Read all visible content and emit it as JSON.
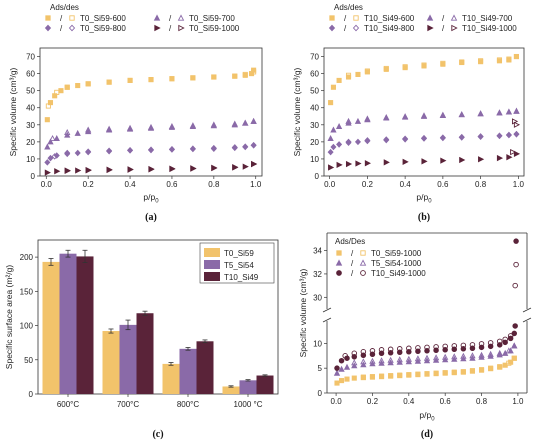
{
  "colors": {
    "yellow": "#f2c36b",
    "purple": "#8a6aa8",
    "dark": "#5a2339"
  },
  "chart_data": [
    {
      "panel": "a",
      "caption": "(a)",
      "type": "scatter",
      "legend_title": "Ads/des",
      "sep": "/",
      "xlabel": "p/p",
      "xlabel_sub": "0",
      "ylabel": "Specific volume (cm³/g)",
      "xlim": [
        -0.03,
        1.03
      ],
      "ylim": [
        0,
        75
      ],
      "xticks": [
        "0.0",
        "0.2",
        "0.4",
        "0.6",
        "0.8",
        "1.0"
      ],
      "yticks": [
        "0",
        "10",
        "20",
        "30",
        "40",
        "50",
        "60",
        "70"
      ],
      "series": [
        {
          "name": "T0_Si59-600",
          "marker": "square",
          "color": "yellow",
          "ads": {
            "x": [
              0.005,
              0.02,
              0.04,
              0.07,
              0.1,
              0.15,
              0.2,
              0.3,
              0.4,
              0.5,
              0.6,
              0.7,
              0.8,
              0.9,
              0.95,
              0.98,
              0.99
            ],
            "y": [
              33,
              43,
              47,
              50,
              52,
              53,
              54,
              55,
              56,
              56.5,
              57,
              57.5,
              58,
              58.5,
              59,
              60,
              62
            ]
          },
          "des": {
            "x": [
              0.99,
              0.95,
              0.9,
              0.8,
              0.7,
              0.6,
              0.5,
              0.4,
              0.3,
              0.2,
              0.1,
              0.05,
              0.01
            ],
            "y": [
              61,
              59.5,
              58.5,
              58,
              57.5,
              57,
              56.5,
              56,
              55,
              54,
              52,
              49,
              41
            ]
          }
        },
        {
          "name": "T0_Si59-700",
          "marker": "triangle",
          "color": "purple",
          "ads": {
            "x": [
              0.005,
              0.02,
              0.05,
              0.1,
              0.15,
              0.2,
              0.3,
              0.4,
              0.5,
              0.6,
              0.7,
              0.8,
              0.9,
              0.95,
              0.99
            ],
            "y": [
              17,
              20,
              22,
              24,
              25,
              26,
              27,
              27.5,
              28,
              28.5,
              29,
              29.5,
              30,
              31,
              32
            ]
          },
          "des": {
            "x": [
              0.99,
              0.95,
              0.9,
              0.8,
              0.7,
              0.6,
              0.5,
              0.4,
              0.3,
              0.2,
              0.1,
              0.03
            ],
            "y": [
              32,
              31,
              30.5,
              30,
              29.5,
              29,
              28.5,
              28,
              27.5,
              27,
              25.5,
              22
            ]
          }
        },
        {
          "name": "T0_Si59-800",
          "marker": "diamond",
          "color": "purple",
          "ads": {
            "x": [
              0.005,
              0.02,
              0.05,
              0.1,
              0.15,
              0.2,
              0.3,
              0.4,
              0.5,
              0.6,
              0.7,
              0.8,
              0.9,
              0.95,
              0.99
            ],
            "y": [
              8,
              10.5,
              12,
              13,
              13.5,
              14,
              14.5,
              15,
              15.2,
              15.5,
              15.8,
              16,
              16.5,
              17,
              18
            ]
          },
          "des": {
            "x": [
              0.99,
              0.95,
              0.9,
              0.8,
              0.7,
              0.6,
              0.5,
              0.4,
              0.3,
              0.2,
              0.1,
              0.04
            ],
            "y": [
              18,
              17.2,
              16.8,
              16.3,
              16,
              15.7,
              15.4,
              15.1,
              14.8,
              14.3,
              13.5,
              11.5
            ]
          }
        },
        {
          "name": "T0_Si59-1000",
          "marker": "tri-right",
          "color": "dark",
          "ads": {
            "x": [
              0.005,
              0.05,
              0.1,
              0.15,
              0.2,
              0.3,
              0.4,
              0.5,
              0.6,
              0.7,
              0.8,
              0.9,
              0.95,
              0.99
            ],
            "y": [
              2,
              2.8,
              3,
              3.2,
              3.3,
              3.5,
              3.7,
              3.9,
              4.1,
              4.3,
              4.6,
              5,
              5.5,
              7
            ]
          },
          "des": {
            "x": [
              0.99,
              0.9,
              0.8,
              0.7,
              0.6,
              0.5,
              0.4,
              0.3,
              0.2,
              0.1
            ],
            "y": [
              7,
              5.2,
              4.8,
              4.5,
              4.3,
              4.1,
              3.9,
              3.7,
              3.5,
              3.2
            ]
          }
        }
      ]
    },
    {
      "panel": "b",
      "caption": "(b)",
      "type": "scatter",
      "legend_title": "Ads/des",
      "sep": "/",
      "xlabel": "p/p",
      "xlabel_sub": "0",
      "ylabel": "Specific volume (cm³/g)",
      "xlim": [
        -0.03,
        1.03
      ],
      "ylim": [
        0,
        75
      ],
      "xticks": [
        "0.0",
        "0.2",
        "0.4",
        "0.6",
        "0.8",
        "1.0"
      ],
      "yticks": [
        "0",
        "10",
        "20",
        "30",
        "40",
        "50",
        "60",
        "70"
      ],
      "series": [
        {
          "name": "T10_Si49-600",
          "marker": "square",
          "color": "yellow",
          "ads": {
            "x": [
              0.005,
              0.02,
              0.05,
              0.1,
              0.15,
              0.2,
              0.3,
              0.4,
              0.5,
              0.6,
              0.7,
              0.8,
              0.9,
              0.95,
              0.99
            ],
            "y": [
              43,
              52,
              56,
              58,
              59.5,
              61,
              62.5,
              63.5,
              64.5,
              65.5,
              66.5,
              67,
              67.5,
              68,
              70
            ]
          },
          "des": {
            "x": [
              0.99,
              0.95,
              0.9,
              0.8,
              0.7,
              0.6,
              0.5,
              0.4,
              0.3,
              0.2,
              0.1
            ],
            "y": [
              70,
              68.5,
              68,
              67.5,
              66.8,
              66,
              65,
              64,
              63,
              61.5,
              59
            ]
          }
        },
        {
          "name": "T10_Si49-700",
          "marker": "triangle",
          "color": "purple",
          "ads": {
            "x": [
              0.005,
              0.02,
              0.05,
              0.1,
              0.15,
              0.2,
              0.3,
              0.4,
              0.5,
              0.6,
              0.7,
              0.8,
              0.9,
              0.95,
              0.99
            ],
            "y": [
              22,
              27,
              29,
              31,
              32,
              33,
              34,
              34.5,
              35,
              35.5,
              36,
              36.5,
              37,
              37.5,
              38
            ]
          },
          "des": {
            "x": [
              0.99,
              0.95,
              0.9,
              0.8,
              0.7,
              0.6,
              0.5,
              0.4,
              0.3,
              0.2,
              0.1
            ],
            "y": [
              38,
              37.5,
              37,
              36.5,
              36,
              35.7,
              35.3,
              34.8,
              34.3,
              33.5,
              32
            ]
          }
        },
        {
          "name": "T10_Si49-800",
          "marker": "diamond",
          "color": "purple",
          "ads": {
            "x": [
              0.005,
              0.02,
              0.05,
              0.1,
              0.15,
              0.2,
              0.3,
              0.4,
              0.5,
              0.6,
              0.7,
              0.8,
              0.9,
              0.95,
              0.99
            ],
            "y": [
              14,
              17,
              18.5,
              19.5,
              20,
              20.5,
              21,
              21.5,
              22,
              22.3,
              22.6,
              23,
              23.5,
              24,
              24.5
            ]
          },
          "des": {
            "x": [
              0.99,
              0.95,
              0.9,
              0.8,
              0.7,
              0.6,
              0.5,
              0.4,
              0.3,
              0.2,
              0.1
            ],
            "y": [
              24.5,
              24,
              23.6,
              23.2,
              22.8,
              22.5,
              22.2,
              21.8,
              21.4,
              20.9,
              20
            ]
          }
        },
        {
          "name": "T10_Si49-1000",
          "marker": "tri-right",
          "color": "dark",
          "ads": {
            "x": [
              0.005,
              0.05,
              0.1,
              0.15,
              0.2,
              0.3,
              0.4,
              0.5,
              0.6,
              0.7,
              0.8,
              0.9,
              0.95,
              0.99
            ],
            "y": [
              5,
              6.5,
              7,
              7.3,
              7.5,
              8,
              8.3,
              8.6,
              9,
              9.4,
              9.8,
              10.5,
              11,
              13
            ]
          },
          "des": {
            "x": [
              0.99,
              0.98,
              0.97
            ],
            "y": [
              30,
              32,
              14
            ]
          }
        }
      ]
    },
    {
      "panel": "c",
      "caption": "(c)",
      "type": "bar",
      "ylabel": "Specific surface area (m²/g)",
      "ylim": [
        0,
        225
      ],
      "yticks": [
        "0",
        "50",
        "100",
        "150",
        "200"
      ],
      "categories": [
        "600°C",
        "700°C",
        "800°C",
        "1000 °C"
      ],
      "series": [
        {
          "name": "T0_Si59",
          "color": "yellow",
          "values": [
            193,
            92,
            44,
            11
          ],
          "errors": [
            5,
            3,
            2,
            1
          ]
        },
        {
          "name": "T5_Si54",
          "color": "purple",
          "values": [
            205,
            101,
            66,
            20
          ],
          "errors": [
            5,
            7,
            2,
            1
          ]
        },
        {
          "name": "T10_Si49",
          "color": "dark",
          "values": [
            201,
            118,
            77,
            27
          ],
          "errors": [
            9,
            3,
            2,
            1
          ]
        }
      ]
    },
    {
      "panel": "d",
      "caption": "(d)",
      "type": "scatter",
      "legend_title": "Ads/Des",
      "sep": "/",
      "xlabel": "p/p",
      "xlabel_sub": "0",
      "ylabel": "Specific volume (cm³/g)",
      "xlim": [
        -0.05,
        1.05
      ],
      "lower_ylim": [
        0,
        14.5
      ],
      "upper_ylim": [
        29,
        35.5
      ],
      "xticks": [
        "0.0",
        "0.2",
        "0.4",
        "0.6",
        "0.8",
        "1.0"
      ],
      "lower_yticks": [
        "0",
        "5",
        "10"
      ],
      "upper_yticks": [
        "30",
        "32",
        "34"
      ],
      "series": [
        {
          "name": "T0_Si59-1000",
          "marker": "square",
          "color": "yellow",
          "ads": {
            "x": [
              0.005,
              0.03,
              0.06,
              0.1,
              0.15,
              0.2,
              0.25,
              0.3,
              0.35,
              0.4,
              0.45,
              0.5,
              0.55,
              0.6,
              0.65,
              0.7,
              0.75,
              0.8,
              0.85,
              0.9,
              0.93,
              0.96,
              0.98
            ],
            "y": [
              2,
              2.5,
              2.8,
              3,
              3.1,
              3.2,
              3.3,
              3.4,
              3.5,
              3.6,
              3.7,
              3.8,
              3.9,
              4,
              4.1,
              4.2,
              4.4,
              4.6,
              4.9,
              5.2,
              5.6,
              6.2,
              7
            ]
          },
          "des": {
            "x": [
              0.98,
              0.95,
              0.9,
              0.85,
              0.8,
              0.75,
              0.7,
              0.65,
              0.6,
              0.55,
              0.5,
              0.45,
              0.4,
              0.35,
              0.3,
              0.25,
              0.2,
              0.15
            ],
            "y": [
              7,
              6,
              5.3,
              5,
              4.7,
              4.5,
              4.3,
              4.2,
              4.1,
              4,
              3.9,
              3.8,
              3.7,
              3.6,
              3.5,
              3.4,
              3.3,
              3.2
            ]
          }
        },
        {
          "name": "T5_Si54-1000",
          "marker": "triangle",
          "color": "purple",
          "ads": {
            "x": [
              0.005,
              0.03,
              0.06,
              0.1,
              0.15,
              0.2,
              0.25,
              0.3,
              0.35,
              0.4,
              0.45,
              0.5,
              0.55,
              0.6,
              0.65,
              0.7,
              0.75,
              0.8,
              0.85,
              0.9,
              0.93,
              0.96,
              0.98
            ],
            "y": [
              4,
              4.8,
              5.2,
              5.5,
              5.7,
              5.9,
              6,
              6.1,
              6.2,
              6.3,
              6.4,
              6.5,
              6.6,
              6.7,
              6.8,
              6.9,
              7,
              7.2,
              7.4,
              7.7,
              8,
              8.5,
              9.5
            ]
          },
          "des": {
            "x": [
              0.98,
              0.95,
              0.9,
              0.85,
              0.8,
              0.75,
              0.7,
              0.65,
              0.6,
              0.55,
              0.5,
              0.45,
              0.4,
              0.35,
              0.3,
              0.25,
              0.2,
              0.15,
              0.1
            ],
            "y": [
              9.5,
              8.5,
              8,
              7.8,
              7.6,
              7.5,
              7.4,
              7.3,
              7.2,
              7.1,
              7,
              6.9,
              6.8,
              6.7,
              6.6,
              6.5,
              6.4,
              6.3,
              6.1
            ]
          }
        },
        {
          "name": "T10_Si49-1000",
          "marker": "circle",
          "color": "dark",
          "ads": {
            "x": [
              0.005,
              0.03,
              0.06,
              0.1,
              0.15,
              0.2,
              0.25,
              0.3,
              0.35,
              0.4,
              0.45,
              0.5,
              0.55,
              0.6,
              0.65,
              0.7,
              0.75,
              0.8,
              0.85,
              0.9,
              0.93,
              0.96,
              0.98,
              0.985,
              0.99
            ],
            "y": [
              5,
              6.5,
              7,
              7.3,
              7.6,
              7.8,
              8,
              8.1,
              8.2,
              8.3,
              8.4,
              8.5,
              8.6,
              8.7,
              8.8,
              8.9,
              9,
              9.2,
              9.4,
              9.7,
              10.2,
              11,
              12,
              13.5,
              34.8
            ]
          },
          "des": {
            "x": [
              0.99,
              0.985,
              0.96,
              0.93,
              0.9,
              0.85,
              0.8,
              0.75,
              0.7,
              0.65,
              0.6,
              0.55,
              0.5,
              0.45,
              0.4,
              0.35,
              0.3,
              0.25,
              0.2,
              0.15,
              0.1,
              0.05
            ],
            "y": [
              32.8,
              31,
              11.5,
              10.8,
              10.4,
              10.1,
              9.9,
              9.7,
              9.6,
              9.5,
              9.4,
              9.3,
              9.2,
              9.1,
              9,
              8.9,
              8.8,
              8.7,
              8.5,
              8.3,
              8,
              7.5
            ]
          }
        }
      ]
    }
  ]
}
